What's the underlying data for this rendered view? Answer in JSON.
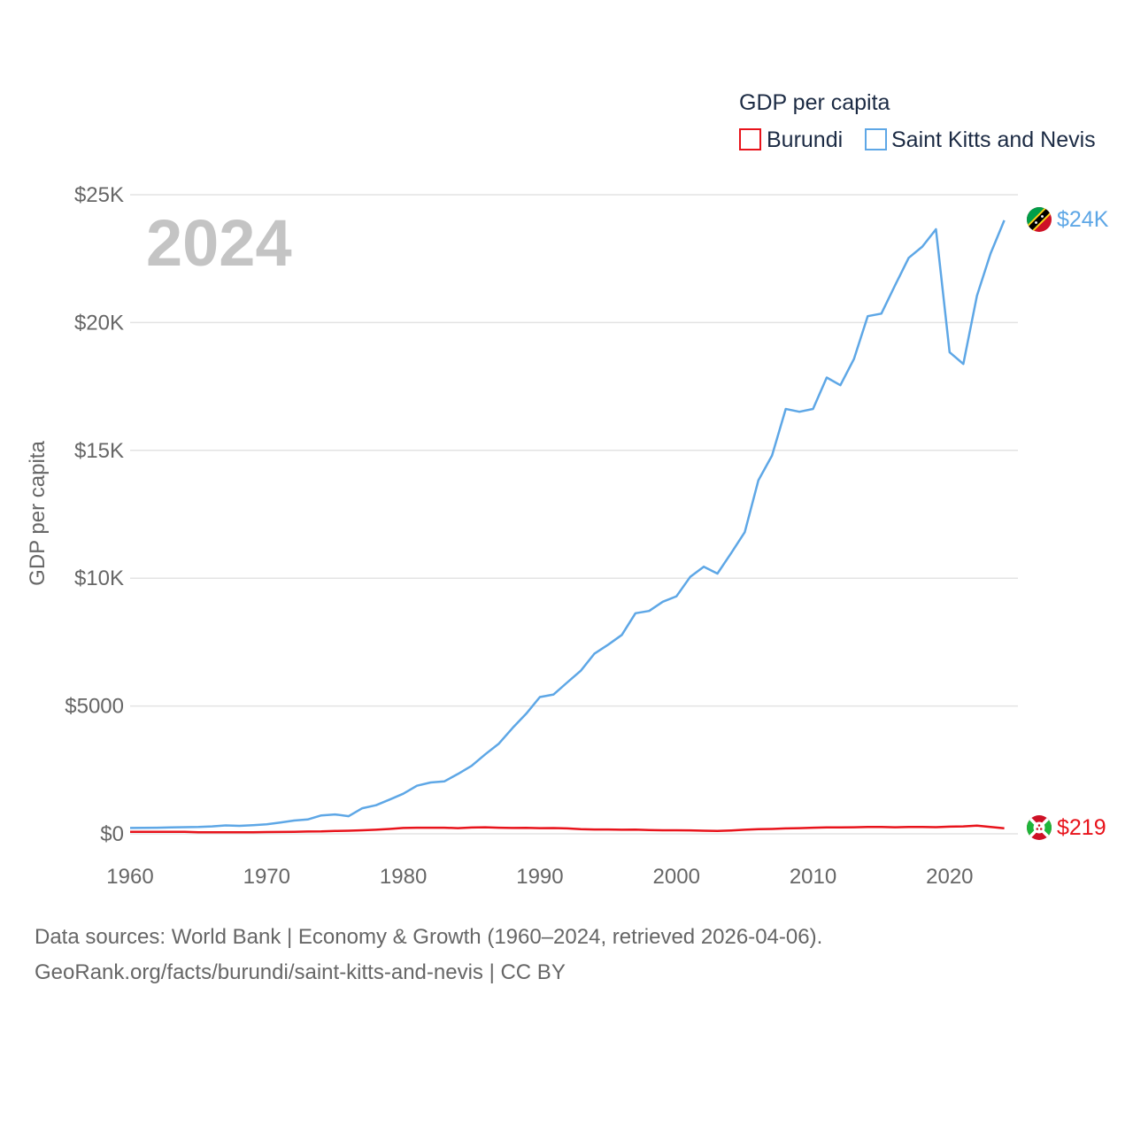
{
  "chart_data": {
    "type": "line",
    "title": "GDP per capita",
    "ylabel": "GDP per capita",
    "xlabel": "",
    "year_label": "2024",
    "xlim": [
      1960,
      2025
    ],
    "ylim": [
      0,
      25000
    ],
    "x_ticks": [
      1960,
      1970,
      1980,
      1990,
      2000,
      2010,
      2020
    ],
    "x_tick_labels": [
      "1960",
      "1970",
      "1980",
      "1990",
      "2000",
      "2010",
      "2020"
    ],
    "y_ticks": [
      0,
      5000,
      10000,
      15000,
      20000,
      25000
    ],
    "y_tick_labels": [
      "$0",
      "$5000",
      "$10K",
      "$15K",
      "$20K",
      "$25K"
    ],
    "grid": true,
    "legend_position": "top-right",
    "series": [
      {
        "name": "Burundi",
        "color": "#e8131b",
        "end_label": "$219",
        "flag": "burundi-flag",
        "x": [
          1960,
          1961,
          1962,
          1963,
          1964,
          1965,
          1966,
          1967,
          1968,
          1969,
          1970,
          1971,
          1972,
          1973,
          1974,
          1975,
          1976,
          1977,
          1978,
          1979,
          1980,
          1981,
          1982,
          1983,
          1984,
          1985,
          1986,
          1987,
          1988,
          1989,
          1990,
          1991,
          1992,
          1993,
          1994,
          1995,
          1996,
          1997,
          1998,
          1999,
          2000,
          2001,
          2002,
          2003,
          2004,
          2005,
          2006,
          2007,
          2008,
          2009,
          2010,
          2011,
          2012,
          2013,
          2014,
          2015,
          2016,
          2017,
          2018,
          2019,
          2020,
          2021,
          2022,
          2023,
          2024
        ],
        "values": [
          75,
          75,
          75,
          78,
          80,
          60,
          58,
          58,
          60,
          62,
          70,
          72,
          75,
          90,
          95,
          110,
          120,
          140,
          160,
          190,
          230,
          240,
          240,
          240,
          220,
          245,
          255,
          240,
          230,
          235,
          220,
          225,
          210,
          180,
          170,
          170,
          160,
          165,
          150,
          140,
          140,
          135,
          120,
          115,
          130,
          160,
          180,
          190,
          210,
          220,
          240,
          250,
          250,
          255,
          270,
          270,
          255,
          270,
          270,
          260,
          280,
          290,
          320,
          270,
          219
        ]
      },
      {
        "name": "Saint Kitts and Nevis",
        "color": "#5ea7e6",
        "end_label": "$24K",
        "flag": "saint-kitts-and-nevis-flag",
        "x": [
          1960,
          1961,
          1962,
          1963,
          1964,
          1965,
          1966,
          1967,
          1968,
          1969,
          1970,
          1971,
          1972,
          1973,
          1974,
          1975,
          1976,
          1977,
          1978,
          1979,
          1980,
          1981,
          1982,
          1983,
          1984,
          1985,
          1986,
          1987,
          1988,
          1989,
          1990,
          1991,
          1992,
          1993,
          1994,
          1995,
          1996,
          1997,
          1998,
          1999,
          2000,
          2001,
          2002,
          2003,
          2004,
          2005,
          2006,
          2007,
          2008,
          2009,
          2010,
          2011,
          2012,
          2013,
          2014,
          2015,
          2016,
          2017,
          2018,
          2019,
          2020,
          2021,
          2022,
          2023,
          2024
        ],
        "values": [
          230,
          235,
          240,
          250,
          260,
          265,
          290,
          330,
          310,
          340,
          370,
          440,
          520,
          560,
          720,
          760,
          690,
          1000,
          1120,
          1340,
          1570,
          1880,
          2010,
          2050,
          2340,
          2660,
          3110,
          3530,
          4140,
          4700,
          5350,
          5450,
          5920,
          6380,
          7050,
          7400,
          7780,
          8630,
          8720,
          9080,
          9290,
          10050,
          10450,
          10180,
          10980,
          11800,
          13830,
          14800,
          16620,
          16510,
          16620,
          17850,
          17550,
          18580,
          20250,
          20350,
          21450,
          22530,
          22970,
          23650,
          18840,
          18380,
          21050,
          22700,
          24000
        ]
      }
    ]
  },
  "source": {
    "line1": "Data sources: World Bank | Economy & Growth (1960–2024, retrieved 2026-04-06).",
    "line2": "GeoRank.org/facts/burundi/saint-kitts-and-nevis | CC BY"
  }
}
